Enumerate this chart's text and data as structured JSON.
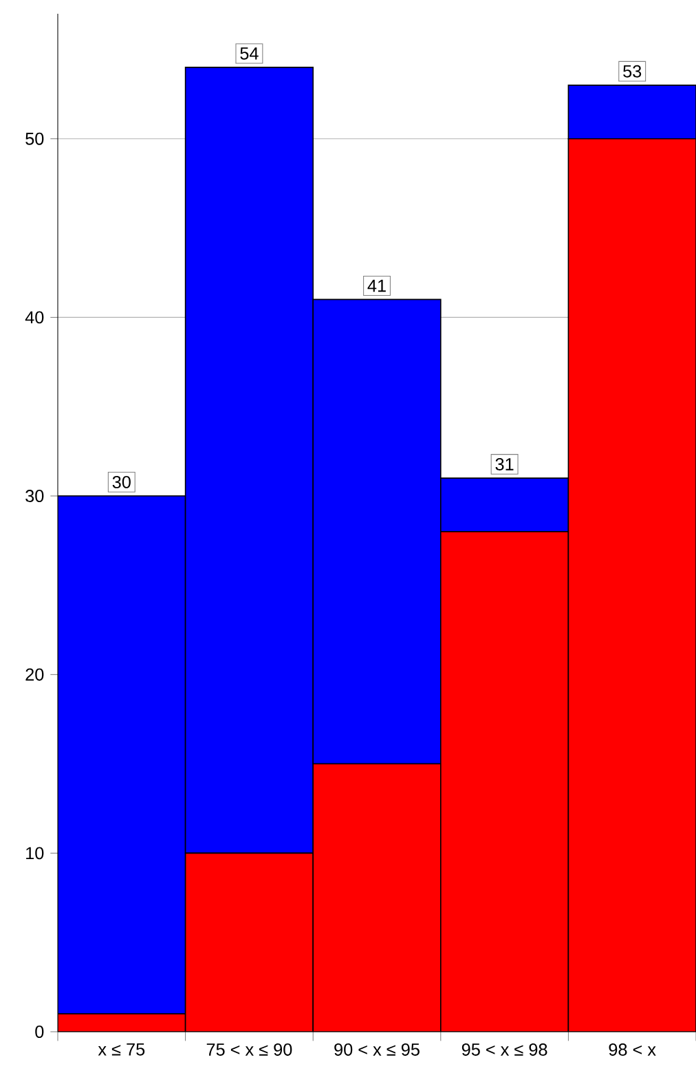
{
  "chart_data": {
    "type": "bar",
    "stacked": true,
    "categories": [
      "x ≤ 75",
      "75 < x ≤ 90",
      "90 < x ≤ 95",
      "95 < x ≤ 98",
      "98 < x"
    ],
    "series": [
      {
        "color": "#ff0000",
        "values": [
          1,
          10,
          15,
          28,
          50
        ]
      },
      {
        "color": "#0000ff",
        "values": [
          29,
          44,
          26,
          3,
          3
        ]
      }
    ],
    "ylim": [
      0,
      57
    ],
    "yticks": [
      0,
      10,
      20,
      30,
      40,
      50
    ],
    "grid": "y",
    "totals": [
      "30",
      "54",
      "41",
      "31",
      "53"
    ]
  }
}
